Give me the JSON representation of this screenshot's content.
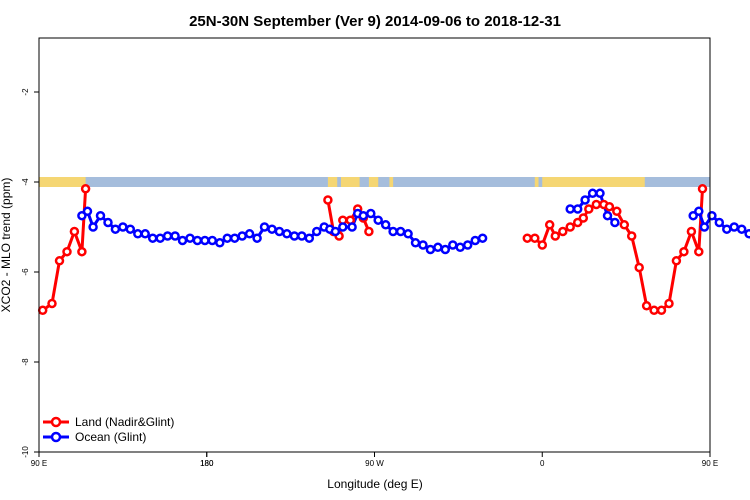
{
  "chart_data": {
    "type": "line",
    "title": "25N-30N September (Ver 9)   2014-09-06 to 2018-12-31",
    "xlabel": "Longitude (deg E)",
    "ylabel": "XCO2 - MLO trend (ppm)",
    "xlim": [
      90,
      450
    ],
    "ylim": [
      -10,
      -0.8
    ],
    "x_ticks": [
      {
        "value": 90,
        "label": "90 E"
      },
      {
        "value": 180,
        "label": "180"
      },
      {
        "value": 270,
        "label": "90 W"
      },
      {
        "value": 360,
        "label": "0"
      },
      {
        "value": 450,
        "label": "90 E"
      },
      {
        "value": 540,
        "label": "180"
      }
    ],
    "y_ticks": [
      {
        "value": -2,
        "label": "-2"
      },
      {
        "value": -4,
        "label": "-4"
      },
      {
        "value": -6,
        "label": "-6"
      },
      {
        "value": -8,
        "label": "-8"
      },
      {
        "value": -10,
        "label": "-10"
      }
    ],
    "legend_position": "bottom-left",
    "land_ocean_strip": {
      "ocean_color": "#a5bddc",
      "land_color": "#f5d673",
      "land_ranges": [
        [
          90,
          115
        ],
        [
          245,
          250
        ],
        [
          252,
          262
        ],
        [
          267,
          272
        ],
        [
          278,
          280
        ],
        [
          356,
          358
        ],
        [
          360,
          415
        ]
      ]
    },
    "series": [
      {
        "name": "Land (Nadir&Glint)",
        "color": "#ff0000",
        "points": [
          [
            92,
            -6.85
          ],
          [
            97,
            -6.7
          ],
          [
            101,
            -5.75
          ],
          [
            105,
            -5.55
          ],
          [
            109,
            -5.1
          ],
          [
            113,
            -5.55
          ],
          [
            115,
            -4.15
          ],
          [
            245,
            -4.4
          ],
          [
            248,
            -5.1
          ],
          [
            251,
            -5.2
          ],
          [
            253,
            -4.85
          ],
          [
            257,
            -4.85
          ],
          [
            261,
            -4.6
          ],
          [
            264,
            -4.8
          ],
          [
            267,
            -5.1
          ],
          [
            352,
            -5.25
          ],
          [
            356,
            -5.25
          ],
          [
            360,
            -5.4
          ],
          [
            364,
            -4.95
          ],
          [
            367,
            -5.2
          ],
          [
            371,
            -5.1
          ],
          [
            375,
            -5.0
          ],
          [
            379,
            -4.9
          ],
          [
            382,
            -4.8
          ],
          [
            385,
            -4.6
          ],
          [
            389,
            -4.5
          ],
          [
            393,
            -4.5
          ],
          [
            396,
            -4.55
          ],
          [
            400,
            -4.65
          ],
          [
            404,
            -4.95
          ],
          [
            408,
            -5.2
          ],
          [
            412,
            -5.9
          ],
          [
            416,
            -6.75
          ],
          [
            420,
            -6.85
          ],
          [
            424,
            -6.85
          ],
          [
            428,
            -6.7
          ],
          [
            432,
            -5.75
          ],
          [
            436,
            -5.55
          ],
          [
            440,
            -5.1
          ],
          [
            444,
            -5.55
          ],
          [
            446,
            -4.15
          ]
        ]
      },
      {
        "name": "Ocean (Glint)",
        "color": "#0000ff",
        "points": [
          [
            113,
            -4.75
          ],
          [
            116,
            -4.65
          ],
          [
            119,
            -5.0
          ],
          [
            123,
            -4.75
          ],
          [
            127,
            -4.9
          ],
          [
            131,
            -5.05
          ],
          [
            135,
            -5.0
          ],
          [
            139,
            -5.05
          ],
          [
            143,
            -5.15
          ],
          [
            147,
            -5.15
          ],
          [
            151,
            -5.25
          ],
          [
            155,
            -5.25
          ],
          [
            159,
            -5.2
          ],
          [
            163,
            -5.2
          ],
          [
            167,
            -5.3
          ],
          [
            171,
            -5.25
          ],
          [
            175,
            -5.3
          ],
          [
            179,
            -5.3
          ],
          [
            183,
            -5.3
          ],
          [
            187,
            -5.35
          ],
          [
            191,
            -5.25
          ],
          [
            195,
            -5.25
          ],
          [
            199,
            -5.2
          ],
          [
            203,
            -5.15
          ],
          [
            207,
            -5.25
          ],
          [
            211,
            -5.0
          ],
          [
            215,
            -5.05
          ],
          [
            219,
            -5.1
          ],
          [
            223,
            -5.15
          ],
          [
            227,
            -5.2
          ],
          [
            231,
            -5.2
          ],
          [
            235,
            -5.25
          ],
          [
            239,
            -5.1
          ],
          [
            243,
            -5.0
          ],
          [
            246,
            -5.05
          ],
          [
            249,
            -5.1
          ],
          [
            253,
            -5.0
          ],
          [
            258,
            -5.0
          ],
          [
            261,
            -4.7
          ],
          [
            264,
            -4.75
          ],
          [
            268,
            -4.7
          ],
          [
            272,
            -4.85
          ],
          [
            276,
            -4.95
          ],
          [
            280,
            -5.1
          ],
          [
            284,
            -5.1
          ],
          [
            288,
            -5.15
          ],
          [
            292,
            -5.35
          ],
          [
            296,
            -5.4
          ],
          [
            300,
            -5.5
          ],
          [
            304,
            -5.45
          ],
          [
            308,
            -5.5
          ],
          [
            312,
            -5.4
          ],
          [
            316,
            -5.45
          ],
          [
            320,
            -5.4
          ],
          [
            324,
            -5.3
          ],
          [
            328,
            -5.25
          ],
          [
            375,
            -4.6
          ],
          [
            379,
            -4.6
          ],
          [
            383,
            -4.4
          ],
          [
            387,
            -4.25
          ],
          [
            391,
            -4.25
          ],
          [
            395,
            -4.75
          ],
          [
            399,
            -4.9
          ],
          [
            441,
            -4.75
          ],
          [
            444,
            -4.65
          ],
          [
            447,
            -5.0
          ],
          [
            451,
            -4.75
          ],
          [
            455,
            -4.9
          ],
          [
            459,
            -5.05
          ],
          [
            463,
            -5.0
          ],
          [
            467,
            -5.05
          ],
          [
            471,
            -5.15
          ],
          [
            475,
            -5.15
          ],
          [
            479,
            -5.2
          ],
          [
            483,
            -5.2
          ],
          [
            487,
            -5.2
          ]
        ]
      }
    ]
  }
}
